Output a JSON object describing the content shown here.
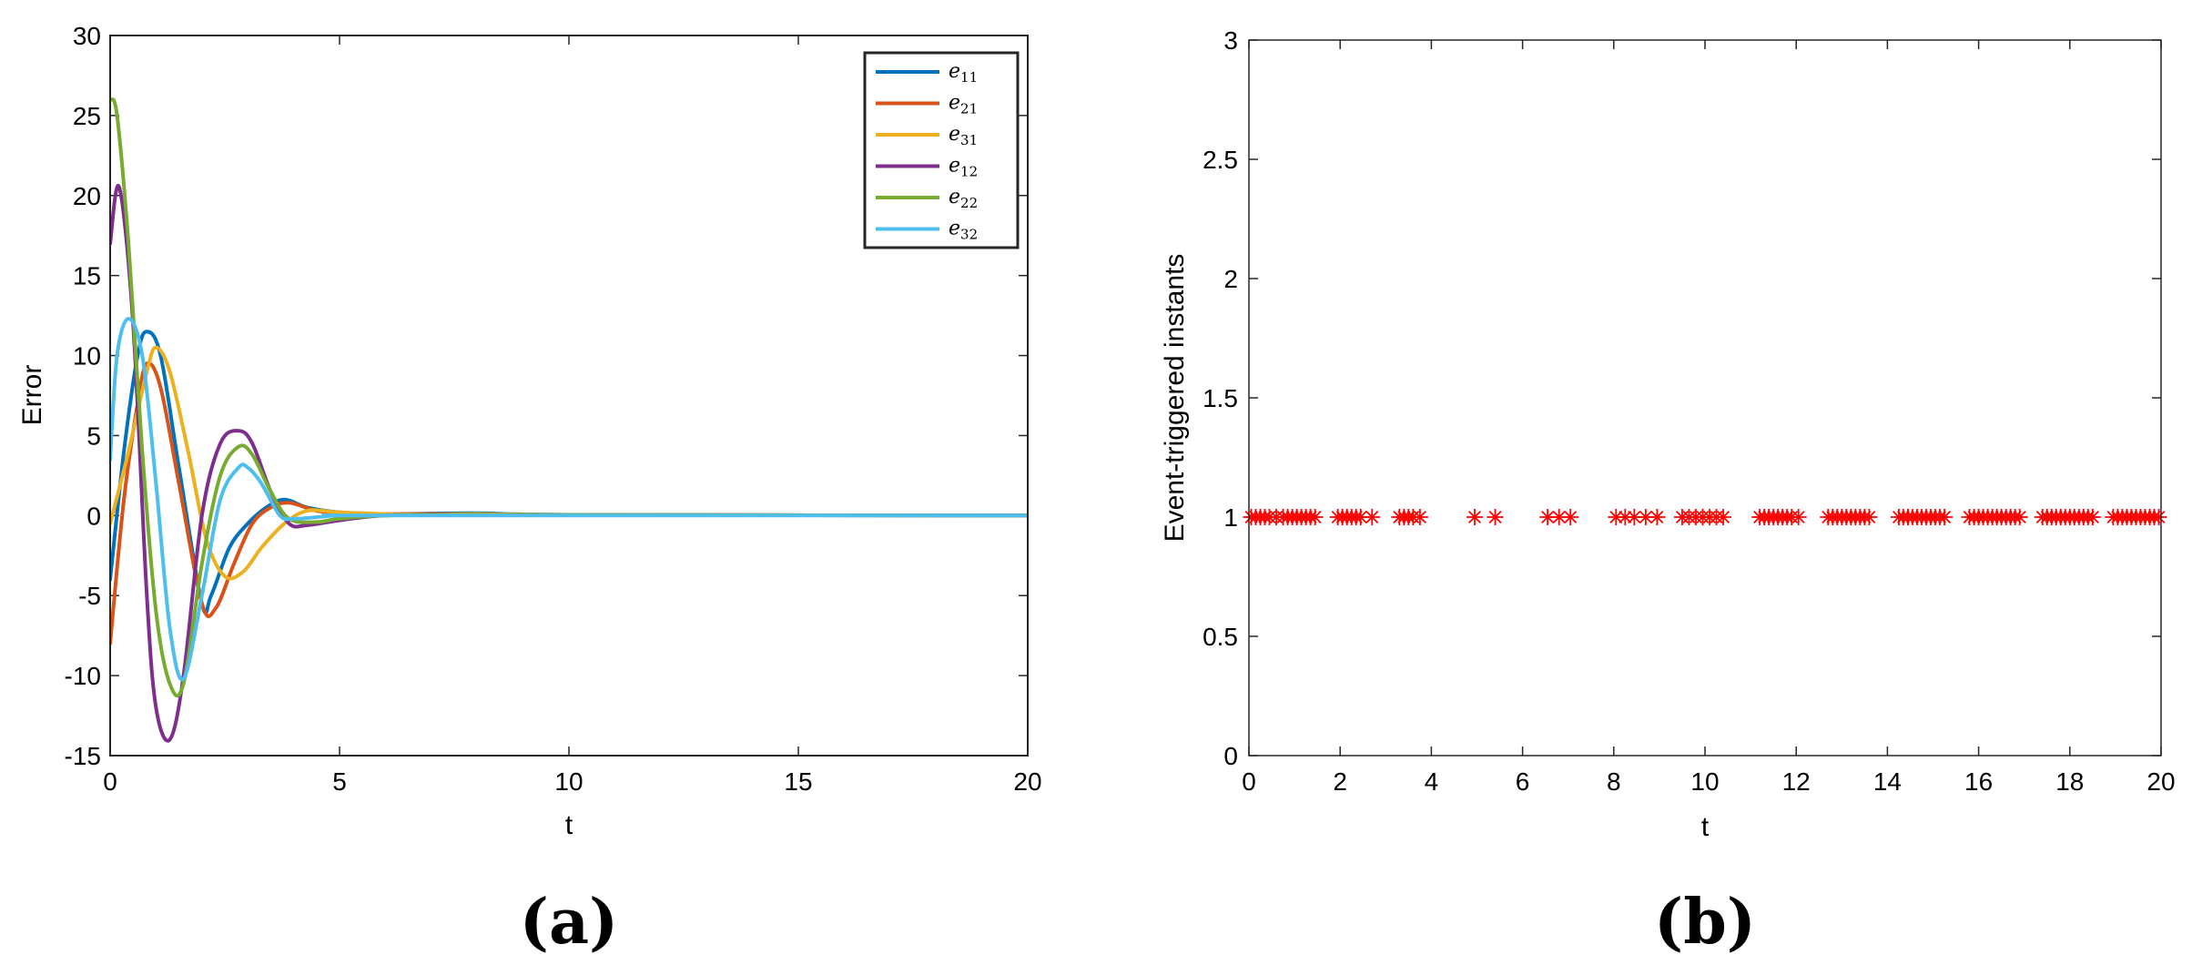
{
  "chart_data": [
    {
      "type": "line",
      "panel_label": "(a)",
      "xlabel": "t",
      "ylabel": "Error",
      "xlim": [
        0,
        20
      ],
      "ylim": [
        -15,
        30
      ],
      "xticks": [
        "0",
        "5",
        "10",
        "15",
        "20"
      ],
      "yticks": [
        "-15",
        "-10",
        "-5",
        "0",
        "5",
        "10",
        "15",
        "20",
        "25",
        "30"
      ],
      "legend_position": "top-right",
      "series": [
        {
          "name": "e",
          "sub": "11",
          "color": "#0072BD",
          "x": [
            0,
            0.3,
            0.6,
            0.8,
            1.1,
            1.5,
            2.0,
            2.2,
            2.6,
            3.0,
            3.4,
            3.8,
            4.3,
            5,
            6,
            8,
            10,
            20
          ],
          "y": [
            -4,
            4,
            10,
            11.5,
            10,
            3,
            -5.5,
            -5,
            -2,
            -0.5,
            0.5,
            1,
            0.5,
            0.2,
            0.1,
            0.15,
            0.05,
            0
          ]
        },
        {
          "name": "e",
          "sub": "21",
          "color": "#D95319",
          "x": [
            0,
            0.3,
            0.6,
            0.8,
            1.1,
            1.5,
            2.0,
            2.3,
            2.7,
            3.1,
            3.5,
            3.9,
            4.5,
            5,
            6,
            8,
            10,
            20
          ],
          "y": [
            -8,
            1,
            7,
            9.5,
            8,
            2,
            -5.5,
            -5.8,
            -3,
            -0.5,
            0.5,
            0.8,
            0.3,
            0.2,
            0.1,
            0.1,
            0.05,
            0
          ]
        },
        {
          "name": "e",
          "sub": "31",
          "color": "#EDB120",
          "x": [
            0,
            0.4,
            0.8,
            1.0,
            1.3,
            1.7,
            2.1,
            2.5,
            2.9,
            3.3,
            3.8,
            4.3,
            5,
            6,
            7,
            8,
            10,
            20
          ],
          "y": [
            -0.5,
            4,
            9,
            10.5,
            9,
            4,
            -1.5,
            -3.8,
            -3.5,
            -2,
            -0.5,
            0.3,
            0.2,
            0.1,
            0.05,
            0.1,
            0.05,
            0
          ]
        },
        {
          "name": "e",
          "sub": "12",
          "color": "#7E2F8E",
          "x": [
            0,
            0.2,
            0.5,
            0.8,
            1.0,
            1.3,
            1.6,
            2.0,
            2.4,
            2.8,
            3.1,
            3.5,
            3.9,
            4.3,
            5,
            6,
            8,
            20
          ],
          "y": [
            17,
            20.5,
            12,
            -5,
            -12,
            -14,
            -10,
            0,
            4.5,
            5.3,
            4.5,
            1.5,
            -0.5,
            -0.6,
            -0.3,
            0,
            0.05,
            0
          ]
        },
        {
          "name": "e",
          "sub": "22",
          "color": "#77AC30",
          "x": [
            0,
            0.15,
            0.4,
            0.7,
            1.0,
            1.3,
            1.6,
            2.0,
            2.4,
            2.8,
            3.1,
            3.5,
            3.9,
            4.5,
            5,
            6,
            8,
            20
          ],
          "y": [
            26,
            25,
            17,
            4,
            -6,
            -10.5,
            -10.5,
            -3,
            2.5,
            4.3,
            3.8,
            1.5,
            -0.2,
            -0.4,
            -0.2,
            0,
            0.05,
            0
          ]
        },
        {
          "name": "e",
          "sub": "32",
          "color": "#4DBEEE",
          "x": [
            0,
            0.15,
            0.4,
            0.7,
            1.0,
            1.3,
            1.6,
            2.0,
            2.4,
            2.8,
            3.0,
            3.3,
            3.7,
            4.0,
            4.5,
            5,
            6,
            20
          ],
          "y": [
            3.5,
            10,
            12.3,
            10,
            2,
            -7,
            -10.2,
            -5,
            1,
            3,
            3,
            2,
            0,
            -0.2,
            -0.1,
            0,
            0,
            0
          ]
        }
      ]
    },
    {
      "type": "scatter",
      "panel_label": "(b)",
      "xlabel": "t",
      "ylabel": "Event-triggered  instants",
      "xlim": [
        0,
        20
      ],
      "ylim": [
        0,
        3
      ],
      "xticks": [
        "0",
        "2",
        "4",
        "6",
        "8",
        "10",
        "12",
        "14",
        "16",
        "18",
        "20"
      ],
      "yticks": [
        "0",
        "0.5",
        "1",
        "1.5",
        "2",
        "2.5",
        "3"
      ],
      "marker": "*",
      "color": "#FF0000",
      "y_value": 1,
      "x": [
        0.05,
        0.15,
        0.25,
        0.35,
        0.45,
        0.6,
        0.75,
        0.85,
        0.95,
        1.05,
        1.15,
        1.25,
        1.35,
        1.45,
        1.95,
        2.05,
        2.15,
        2.25,
        2.35,
        2.45,
        2.7,
        3.3,
        3.4,
        3.5,
        3.6,
        3.75,
        4.95,
        5.4,
        6.55,
        6.8,
        7.05,
        8.05,
        8.25,
        8.45,
        8.7,
        8.95,
        9.5,
        9.65,
        9.8,
        9.95,
        10.1,
        10.25,
        10.4,
        11.2,
        11.3,
        11.4,
        11.5,
        11.6,
        11.7,
        11.8,
        11.9,
        12.05,
        12.7,
        12.8,
        12.9,
        13.0,
        13.1,
        13.2,
        13.3,
        13.4,
        13.5,
        13.6,
        14.25,
        14.35,
        14.45,
        14.55,
        14.65,
        14.75,
        14.85,
        14.95,
        15.05,
        15.15,
        15.25,
        15.8,
        15.9,
        16.0,
        16.1,
        16.2,
        16.3,
        16.4,
        16.5,
        16.6,
        16.7,
        16.8,
        16.9,
        17.4,
        17.5,
        17.6,
        17.7,
        17.8,
        17.9,
        18.0,
        18.1,
        18.2,
        18.3,
        18.4,
        18.5,
        18.95,
        19.05,
        19.15,
        19.25,
        19.35,
        19.45,
        19.55,
        19.65,
        19.75,
        19.85,
        19.95
      ]
    }
  ]
}
